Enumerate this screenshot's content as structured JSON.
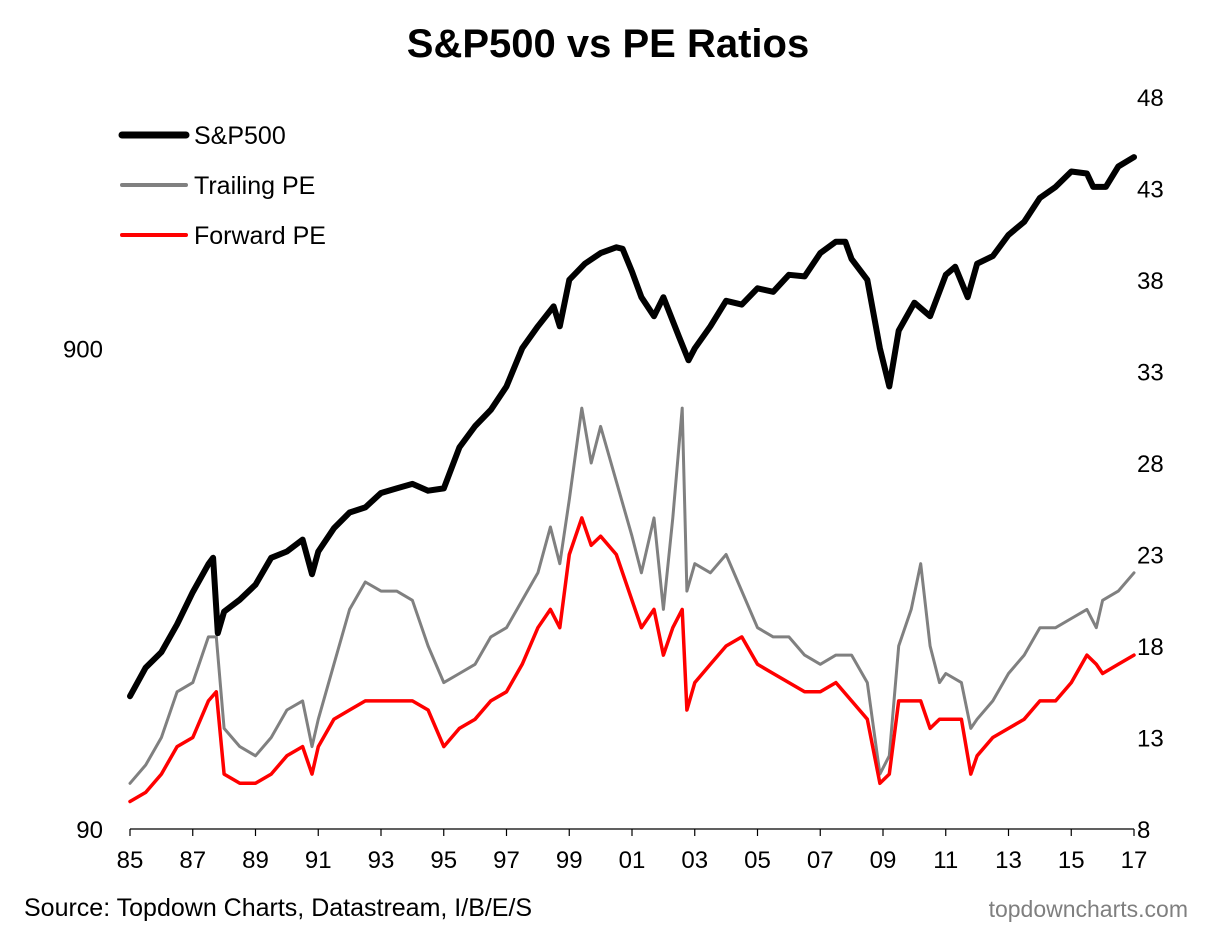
{
  "chart_data": {
    "type": "line",
    "title": "S&P500 vs PE Ratios",
    "source": "Source: Topdown Charts, Datastream, I/B/E/S",
    "watermark": "topdowncharts.com",
    "legend_position": "top-left",
    "grid": false,
    "x_range": [
      1985,
      2017
    ],
    "x_tick_labels": [
      "85",
      "87",
      "89",
      "91",
      "93",
      "95",
      "97",
      "99",
      "01",
      "03",
      "05",
      "07",
      "09",
      "11",
      "13",
      "15",
      "17"
    ],
    "left_axis": {
      "scale": "log",
      "range": [
        90,
        3000
      ],
      "tick_labels": [
        "90",
        "900"
      ],
      "tick_values": [
        90,
        900
      ]
    },
    "right_axis": {
      "range": [
        8,
        48
      ],
      "tick_labels": [
        "8",
        "13",
        "18",
        "23",
        "28",
        "33",
        "38",
        "43",
        "48"
      ]
    },
    "series": [
      {
        "name": "S&P500",
        "axis": "left",
        "color": "#000000",
        "x": [
          1985.0,
          1985.5,
          1986.0,
          1986.5,
          1987.0,
          1987.5,
          1987.65,
          1987.8,
          1988.0,
          1988.5,
          1989.0,
          1989.5,
          1990.0,
          1990.5,
          1990.8,
          1991.0,
          1991.5,
          1992.0,
          1992.5,
          1993.0,
          1993.5,
          1994.0,
          1994.5,
          1995.0,
          1995.5,
          1996.0,
          1996.5,
          1997.0,
          1997.5,
          1998.0,
          1998.5,
          1998.7,
          1999.0,
          1999.5,
          2000.0,
          2000.5,
          2000.7,
          2001.0,
          2001.3,
          2001.7,
          2002.0,
          2002.5,
          2002.8,
          2003.0,
          2003.5,
          2004.0,
          2004.5,
          2005.0,
          2005.5,
          2006.0,
          2006.5,
          2007.0,
          2007.5,
          2007.8,
          2008.0,
          2008.5,
          2008.9,
          2009.2,
          2009.5,
          2010.0,
          2010.5,
          2011.0,
          2011.3,
          2011.7,
          2012.0,
          2012.5,
          2013.0,
          2013.5,
          2014.0,
          2014.5,
          2015.0,
          2015.5,
          2015.7,
          2016.1,
          2016.5,
          2017.0
        ],
        "values": [
          170,
          195,
          210,
          240,
          280,
          320,
          330,
          230,
          255,
          270,
          290,
          330,
          340,
          360,
          305,
          340,
          380,
          410,
          420,
          450,
          460,
          470,
          455,
          460,
          560,
          620,
          670,
          750,
          900,
          1000,
          1100,
          1000,
          1250,
          1350,
          1420,
          1460,
          1450,
          1300,
          1150,
          1050,
          1150,
          950,
          850,
          900,
          1000,
          1130,
          1110,
          1200,
          1180,
          1280,
          1270,
          1420,
          1500,
          1500,
          1380,
          1250,
          900,
          750,
          980,
          1120,
          1050,
          1280,
          1330,
          1150,
          1350,
          1400,
          1550,
          1650,
          1850,
          1950,
          2100,
          2080,
          1950,
          1950,
          2150,
          2250
        ]
      },
      {
        "name": "Trailing PE",
        "axis": "right",
        "color": "#808080",
        "x": [
          1985.0,
          1985.5,
          1986.0,
          1986.5,
          1987.0,
          1987.5,
          1987.75,
          1988.0,
          1988.5,
          1989.0,
          1989.5,
          1990.0,
          1990.5,
          1990.8,
          1991.0,
          1991.5,
          1992.0,
          1992.5,
          1993.0,
          1993.5,
          1994.0,
          1994.5,
          1995.0,
          1995.5,
          1996.0,
          1996.5,
          1997.0,
          1997.5,
          1998.0,
          1998.4,
          1998.7,
          1999.0,
          1999.4,
          1999.7,
          2000.0,
          2000.5,
          2001.0,
          2001.3,
          2001.7,
          2002.0,
          2002.3,
          2002.6,
          2002.75,
          2003.0,
          2003.5,
          2004.0,
          2004.5,
          2005.0,
          2005.5,
          2006.0,
          2006.5,
          2007.0,
          2007.5,
          2008.0,
          2008.5,
          2008.9,
          2009.2,
          2009.5,
          2009.9,
          2010.2,
          2010.5,
          2010.8,
          2011.0,
          2011.5,
          2011.8,
          2012.0,
          2012.5,
          2013.0,
          2013.5,
          2014.0,
          2014.5,
          2015.0,
          2015.5,
          2015.8,
          2016.0,
          2016.5,
          2017.0
        ],
        "values": [
          10.5,
          11.5,
          13,
          15.5,
          16,
          18.5,
          18.5,
          13.5,
          12.5,
          12,
          13,
          14.5,
          15,
          12.5,
          14,
          17,
          20,
          21.5,
          21,
          21,
          20.5,
          18,
          16,
          16.5,
          17,
          18.5,
          19,
          20.5,
          22,
          24.5,
          22.5,
          26,
          31,
          28,
          30,
          27,
          24,
          22,
          25,
          20,
          25,
          31,
          21,
          22.5,
          22,
          23,
          21,
          19,
          18.5,
          18.5,
          17.5,
          17,
          17.5,
          17.5,
          16,
          11,
          12,
          18,
          20,
          22.5,
          18,
          16,
          16.5,
          16,
          13.5,
          14,
          15,
          16.5,
          17.5,
          19,
          19,
          19.5,
          20,
          19,
          20.5,
          21,
          22
        ]
      },
      {
        "name": "Forward PE",
        "axis": "right",
        "color": "#ff0000",
        "x": [
          1985.0,
          1985.5,
          1986.0,
          1986.5,
          1987.0,
          1987.5,
          1987.75,
          1988.0,
          1988.5,
          1989.0,
          1989.5,
          1990.0,
          1990.5,
          1990.8,
          1991.0,
          1991.5,
          1992.0,
          1992.5,
          1993.0,
          1993.5,
          1994.0,
          1994.5,
          1995.0,
          1995.5,
          1996.0,
          1996.5,
          1997.0,
          1997.5,
          1998.0,
          1998.4,
          1998.7,
          1999.0,
          1999.4,
          1999.7,
          2000.0,
          2000.5,
          2001.0,
          2001.3,
          2001.7,
          2002.0,
          2002.3,
          2002.6,
          2002.75,
          2003.0,
          2003.5,
          2004.0,
          2004.5,
          2005.0,
          2005.5,
          2006.0,
          2006.5,
          2007.0,
          2007.5,
          2008.0,
          2008.5,
          2008.9,
          2009.2,
          2009.5,
          2009.9,
          2010.2,
          2010.5,
          2010.8,
          2011.0,
          2011.5,
          2011.8,
          2012.0,
          2012.5,
          2013.0,
          2013.5,
          2014.0,
          2014.5,
          2015.0,
          2015.5,
          2015.8,
          2016.0,
          2016.5,
          2017.0
        ],
        "values": [
          9.5,
          10,
          11,
          12.5,
          13,
          15,
          15.5,
          11,
          10.5,
          10.5,
          11,
          12,
          12.5,
          11,
          12.5,
          14,
          14.5,
          15,
          15,
          15,
          15,
          14.5,
          12.5,
          13.5,
          14,
          15,
          15.5,
          17,
          19,
          20,
          19,
          23,
          25,
          23.5,
          24,
          23,
          20.5,
          19,
          20,
          17.5,
          19,
          20,
          14.5,
          16,
          17,
          18,
          18.5,
          17,
          16.5,
          16,
          15.5,
          15.5,
          16,
          15,
          14,
          10.5,
          11,
          15,
          15,
          15,
          13.5,
          14,
          14,
          14,
          11,
          12,
          13,
          13.5,
          14,
          15,
          15,
          16,
          17.5,
          17,
          16.5,
          17,
          17.5
        ]
      }
    ]
  }
}
